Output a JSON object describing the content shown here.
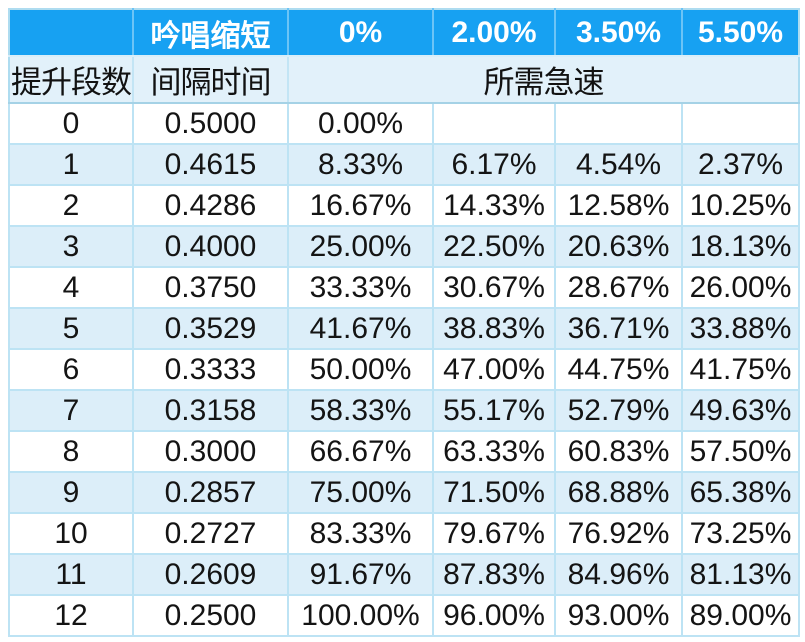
{
  "chart_data": {
    "type": "table",
    "title": "",
    "header_row_1": [
      "",
      "吟唱缩短",
      "0%",
      "2.00%",
      "3.50%",
      "5.50%"
    ],
    "header_row_2": [
      "提升段数",
      "间隔时间",
      "所需急速"
    ],
    "columns_meaning": [
      "提升段数",
      "间隔时间",
      "0%",
      "2.00%",
      "3.50%",
      "5.50%"
    ],
    "rows": [
      [
        "0",
        "0.5000",
        "0.00%",
        "",
        "",
        ""
      ],
      [
        "1",
        "0.4615",
        "8.33%",
        "6.17%",
        "4.54%",
        "2.37%"
      ],
      [
        "2",
        "0.4286",
        "16.67%",
        "14.33%",
        "12.58%",
        "10.25%"
      ],
      [
        "3",
        "0.4000",
        "25.00%",
        "22.50%",
        "20.63%",
        "18.13%"
      ],
      [
        "4",
        "0.3750",
        "33.33%",
        "30.67%",
        "28.67%",
        "26.00%"
      ],
      [
        "5",
        "0.3529",
        "41.67%",
        "38.83%",
        "36.71%",
        "33.88%"
      ],
      [
        "6",
        "0.3333",
        "50.00%",
        "47.00%",
        "44.75%",
        "41.75%"
      ],
      [
        "7",
        "0.3158",
        "58.33%",
        "55.17%",
        "52.79%",
        "49.63%"
      ],
      [
        "8",
        "0.3000",
        "66.67%",
        "63.33%",
        "60.83%",
        "57.50%"
      ],
      [
        "9",
        "0.2857",
        "75.00%",
        "71.50%",
        "68.88%",
        "65.38%"
      ],
      [
        "10",
        "0.2727",
        "83.33%",
        "79.67%",
        "76.92%",
        "73.25%"
      ],
      [
        "11",
        "0.2609",
        "91.67%",
        "87.83%",
        "84.96%",
        "81.13%"
      ],
      [
        "12",
        "0.2500",
        "100.00%",
        "96.00%",
        "93.00%",
        "89.00%"
      ]
    ]
  },
  "colors": {
    "header_blue": "#17a1f2",
    "header_light_blue": "#e2f1fa",
    "row_alternate_blue": "#dceef9",
    "row_white": "#ffffff",
    "cell_border": "#bde3f4",
    "header_text": "#ffffff",
    "body_text": "#141414"
  }
}
